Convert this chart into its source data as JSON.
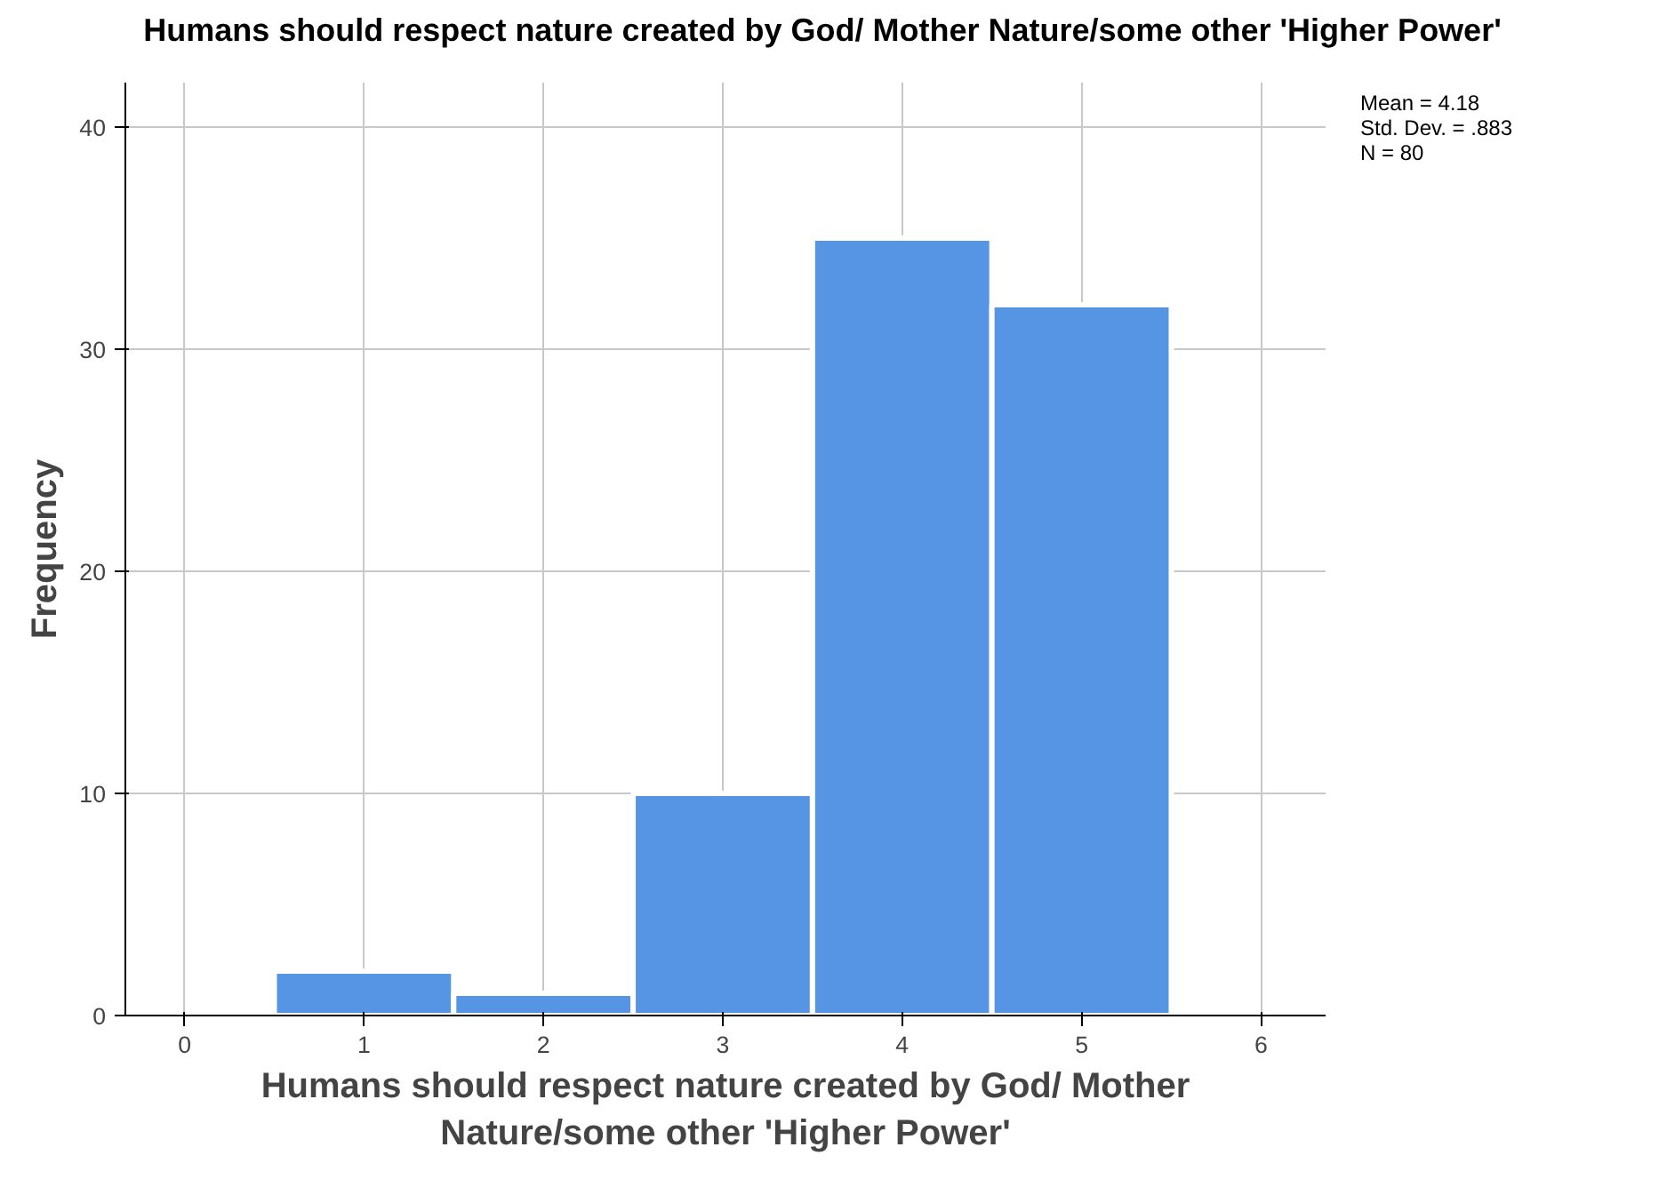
{
  "chart_data": {
    "type": "histogram",
    "title": "Humans should respect nature created by God/ Mother Nature/some other 'Higher Power'",
    "xlabel": "Humans should respect nature created by God/ Mother\nNature/some other 'Higher Power'",
    "ylabel": "Frequency",
    "bins": [
      0.5,
      1.5,
      2.5,
      3.5,
      4.5,
      5.5
    ],
    "values": [
      2,
      1,
      10,
      35,
      32
    ],
    "color": "#5595e3",
    "xlim": [
      -0.33,
      6.36
    ],
    "ylim": [
      0,
      42
    ],
    "xticks": [
      0,
      1,
      2,
      3,
      4,
      5,
      6
    ],
    "yticks": [
      0,
      10,
      20,
      30,
      40
    ],
    "grid": true,
    "annotations": [
      "Mean = 4.18",
      "Std. Dev. = .883",
      "N = 80"
    ]
  }
}
